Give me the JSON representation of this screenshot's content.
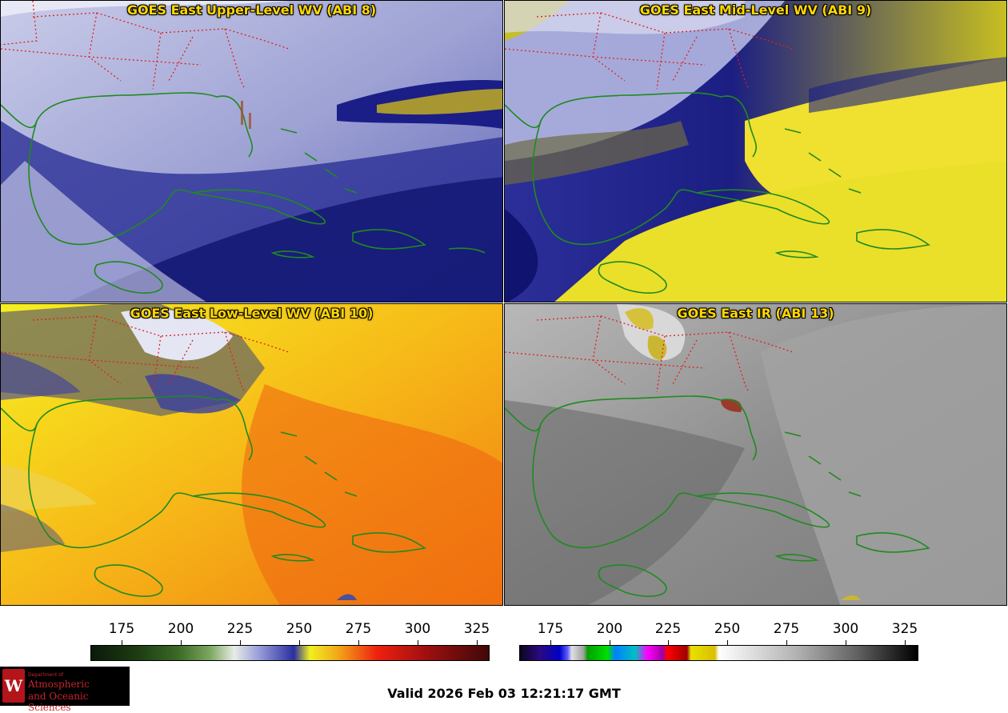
{
  "panels": [
    {
      "title": "GOES East Upper-Level WV (ABI 8)"
    },
    {
      "title": "GOES East Mid-Level WV (ABI 9)"
    },
    {
      "title": "GOES East Low-Level WV (ABI 10)"
    },
    {
      "title": "GOES East IR (ABI 13)"
    }
  ],
  "colorbars": {
    "wv": {
      "ticks": [
        "175",
        "200",
        "225",
        "250",
        "275",
        "300",
        "325"
      ]
    },
    "ir": {
      "ticks": [
        "175",
        "200",
        "225",
        "250",
        "275",
        "300",
        "325"
      ]
    }
  },
  "valid_time": "Valid 2026 Feb 03 12:21:17 GMT",
  "logo": {
    "dept": "Department of",
    "line1": "Atmospheric",
    "line2": "and Oceanic Sciences",
    "seal": "W"
  },
  "colors": {
    "coast": "#1f8a1f",
    "borders": "#e0201c",
    "title": "#ffd700"
  }
}
